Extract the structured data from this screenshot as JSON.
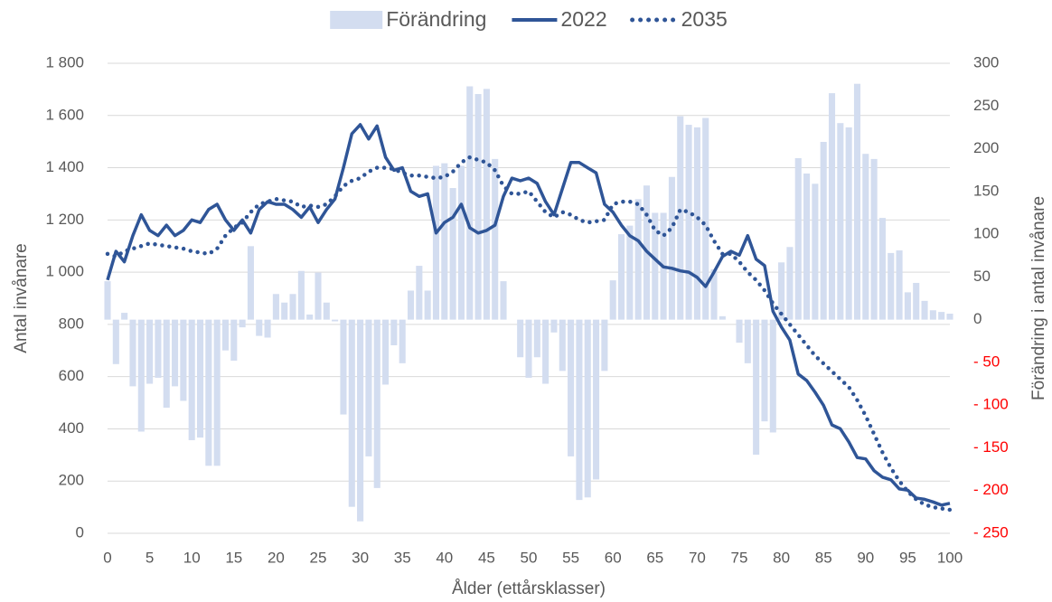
{
  "chart_data": {
    "type": "combo",
    "x_label": "Ålder (ettårsklasser)",
    "y_label": "Antal invånare",
    "y2_label": "Förändring i antal invånare",
    "x": [
      0,
      1,
      2,
      3,
      4,
      5,
      6,
      7,
      8,
      9,
      10,
      11,
      12,
      13,
      14,
      15,
      16,
      17,
      18,
      19,
      20,
      21,
      22,
      23,
      24,
      25,
      26,
      27,
      28,
      29,
      30,
      31,
      32,
      33,
      34,
      35,
      36,
      37,
      38,
      39,
      40,
      41,
      42,
      43,
      44,
      45,
      46,
      47,
      48,
      49,
      50,
      51,
      52,
      53,
      54,
      55,
      56,
      57,
      58,
      59,
      60,
      61,
      62,
      63,
      64,
      65,
      66,
      67,
      68,
      69,
      70,
      71,
      72,
      73,
      74,
      75,
      76,
      77,
      78,
      79,
      80,
      81,
      82,
      83,
      84,
      85,
      86,
      87,
      88,
      89,
      90,
      91,
      92,
      93,
      94,
      95,
      96,
      97,
      98,
      99,
      100
    ],
    "xlim": [
      0,
      100
    ],
    "xticks": [
      0,
      5,
      10,
      15,
      20,
      25,
      30,
      35,
      40,
      45,
      50,
      55,
      60,
      65,
      70,
      75,
      80,
      85,
      90,
      95,
      100
    ],
    "ylim": [
      0,
      1800
    ],
    "yticks": [
      0,
      200,
      400,
      600,
      800,
      {
        "value": 1000,
        "label": "1 000"
      },
      {
        "value": 1200,
        "label": "1 200"
      },
      {
        "value": 1400,
        "label": "1 400"
      },
      {
        "value": 1600,
        "label": "1 600"
      },
      {
        "value": 1800,
        "label": "1 800"
      }
    ],
    "y2lim": [
      -250,
      300
    ],
    "y2ticks": [
      {
        "value": -250,
        "label": "- 250"
      },
      {
        "value": -200,
        "label": "- 200"
      },
      {
        "value": -150,
        "label": "- 150"
      },
      {
        "value": -100,
        "label": "- 100"
      },
      {
        "value": -50,
        "label": "- 50"
      },
      0,
      50,
      100,
      150,
      200,
      250,
      300
    ],
    "y2_negative_color": "#ff0000",
    "grid": true,
    "legend": "top",
    "series": [
      {
        "name": "Förändring",
        "type": "bar",
        "axis": "y2",
        "color": "#d3ddf0",
        "values": [
          45,
          -52,
          8,
          -78,
          -131,
          -75,
          -68,
          -103,
          -78,
          -95,
          -141,
          -138,
          -171,
          -171,
          -36,
          -48,
          -9,
          86,
          -19,
          -21,
          30,
          20,
          30,
          57,
          6,
          55,
          20,
          -2,
          -111,
          -219,
          -236,
          -160,
          -197,
          -76,
          -30,
          -51,
          34,
          63,
          34,
          180,
          183,
          154,
          180,
          273,
          264,
          270,
          188,
          45,
          0,
          -44,
          -68,
          -44,
          -75,
          -15,
          -60,
          -160,
          -211,
          -208,
          -187,
          -60,
          46,
          100,
          110,
          141,
          157,
          125,
          125,
          167,
          238,
          228,
          225,
          236,
          59,
          4,
          0,
          -27,
          -51,
          -158,
          -119,
          -132,
          67,
          85,
          189,
          171,
          159,
          208,
          265,
          230,
          225,
          276,
          194,
          188,
          119,
          78,
          81,
          32,
          43,
          22,
          11,
          9,
          7
        ]
      },
      {
        "name": "2022",
        "type": "line",
        "color": "#2f5597",
        "values": [
          970,
          1080,
          1040,
          1140,
          1220,
          1160,
          1140,
          1180,
          1140,
          1160,
          1200,
          1190,
          1240,
          1260,
          1200,
          1160,
          1200,
          1150,
          1240,
          1270,
          1260,
          1260,
          1240,
          1210,
          1250,
          1190,
          1240,
          1280,
          1400,
          1530,
          1565,
          1510,
          1560,
          1440,
          1390,
          1400,
          1310,
          1290,
          1300,
          1150,
          1190,
          1210,
          1260,
          1170,
          1150,
          1160,
          1180,
          1290,
          1360,
          1350,
          1360,
          1340,
          1270,
          1220,
          1320,
          1420,
          1420,
          1400,
          1380,
          1260,
          1230,
          1180,
          1140,
          1120,
          1080,
          1050,
          1020,
          1015,
          1005,
          1000,
          980,
          945,
          1000,
          1060,
          1080,
          1065,
          1140,
          1050,
          1025,
          850,
          790,
          740,
          610,
          585,
          540,
          490,
          415,
          400,
          350,
          290,
          285,
          240,
          215,
          205,
          170,
          165,
          135,
          130,
          120,
          108,
          115
        ]
      },
      {
        "name": "2035",
        "type": "line",
        "dash": "dotted",
        "color": "#2f5597",
        "values": [
          1070,
          1060,
          1080,
          1090,
          1100,
          1110,
          1105,
          1100,
          1095,
          1090,
          1080,
          1075,
          1070,
          1090,
          1140,
          1170,
          1190,
          1230,
          1260,
          1270,
          1280,
          1275,
          1270,
          1250,
          1255,
          1250,
          1260,
          1290,
          1330,
          1350,
          1360,
          1385,
          1400,
          1400,
          1395,
          1380,
          1370,
          1370,
          1365,
          1360,
          1365,
          1385,
          1420,
          1440,
          1430,
          1420,
          1390,
          1330,
          1300,
          1300,
          1310,
          1270,
          1230,
          1210,
          1230,
          1220,
          1200,
          1190,
          1195,
          1200,
          1260,
          1270,
          1270,
          1260,
          1220,
          1160,
          1140,
          1170,
          1240,
          1230,
          1210,
          1180,
          1120,
          1070,
          1070,
          1040,
          1000,
          970,
          930,
          880,
          840,
          800,
          760,
          720,
          680,
          650,
          620,
          590,
          560,
          510,
          450,
          380,
          310,
          250,
          200,
          160,
          130,
          110,
          100,
          95,
          90
        ]
      }
    ]
  }
}
